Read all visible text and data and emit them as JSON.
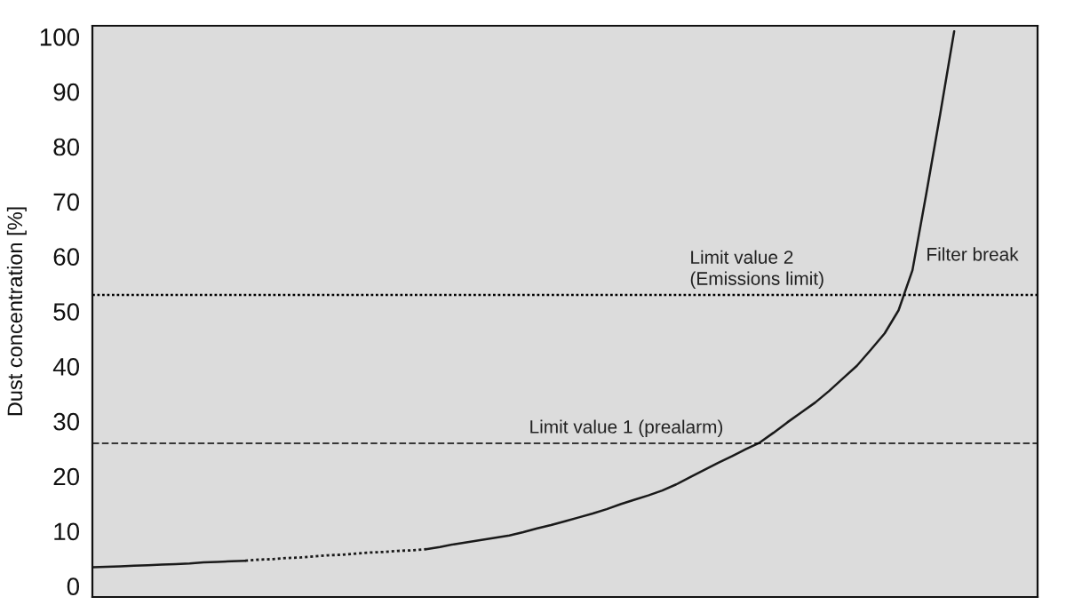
{
  "chart_data": {
    "type": "line",
    "ylabel": "Dust concentration [%]",
    "categories": [
      null,
      null,
      null,
      null,
      null,
      null,
      null,
      null,
      null,
      null,
      null,
      null,
      null,
      null,
      null,
      null,
      null,
      null,
      null,
      null,
      null,
      null,
      null,
      null,
      null,
      null,
      null,
      null,
      null,
      null,
      null,
      null,
      null,
      null,
      null,
      null,
      null,
      null,
      null,
      null,
      null,
      null,
      null,
      null,
      null,
      null,
      null,
      null,
      null,
      null,
      null,
      null,
      null,
      null,
      null,
      null,
      null,
      null,
      null,
      null,
      null,
      null,
      null,
      null,
      null,
      null,
      null,
      null,
      null
    ],
    "series": [
      {
        "color": "#1a1a1a",
        "line_style": "solid",
        "values": [
          3.4,
          3.5,
          3.6,
          3.7,
          3.8,
          3.9,
          4.0,
          4.1,
          4.3,
          4.4,
          4.5,
          4.6,
          null,
          null,
          null,
          null,
          null,
          null,
          null,
          null,
          null,
          null,
          null,
          null,
          null,
          null,
          null,
          null,
          null,
          null,
          null,
          null,
          null,
          null,
          null,
          null,
          null,
          null,
          null,
          null,
          null,
          null,
          null,
          null,
          null,
          null,
          null,
          null,
          null,
          null,
          null,
          null,
          null,
          null,
          null,
          null,
          null,
          null,
          null,
          null,
          null,
          null,
          null,
          null,
          null,
          null,
          null,
          null,
          null
        ]
      },
      {
        "color": "#1a1a1a",
        "line_style": "dotted",
        "values": [
          null,
          null,
          null,
          null,
          null,
          null,
          null,
          null,
          null,
          null,
          null,
          4.6,
          4.8,
          4.9,
          5.1,
          5.2,
          5.4,
          5.6,
          5.7,
          5.9,
          6.1,
          6.2,
          6.4,
          6.5,
          6.7,
          null,
          null,
          null,
          null,
          null,
          null,
          null,
          null,
          null,
          null,
          null,
          null,
          null,
          null,
          null,
          null,
          null,
          null,
          null,
          null,
          null,
          null,
          null,
          null,
          null,
          null,
          null,
          null,
          null,
          null,
          null,
          null,
          null,
          null,
          null,
          null,
          null,
          null,
          null,
          null,
          null,
          null,
          null,
          null
        ]
      },
      {
        "color": "#1a1a1a",
        "line_style": "solid",
        "values": [
          null,
          null,
          null,
          null,
          null,
          null,
          null,
          null,
          null,
          null,
          null,
          null,
          null,
          null,
          null,
          null,
          null,
          null,
          null,
          null,
          null,
          null,
          null,
          null,
          6.7,
          7.1,
          7.6,
          8.0,
          8.4,
          8.8,
          9.2,
          9.8,
          10.5,
          11.1,
          11.8,
          12.5,
          13.2,
          14.0,
          14.9,
          15.7,
          16.5,
          17.4,
          18.5,
          19.8,
          21.1,
          22.4,
          23.6,
          24.9,
          26.1,
          27.9,
          29.8,
          31.6,
          33.4,
          35.5,
          37.8,
          40.1,
          43.0,
          46.0,
          50.2,
          57.5,
          71.5,
          86.0,
          101.0,
          null,
          null,
          null,
          null,
          null,
          null
        ]
      }
    ],
    "ylim": [
      -2,
      102
    ],
    "yticks": [
      0,
      10,
      20,
      30,
      40,
      50,
      60,
      70,
      80,
      90,
      100
    ],
    "ref_lines": [
      {
        "axis": "y",
        "value": 53,
        "label": "Limit value 2\n(Emissions limit)",
        "line_style": "dotted",
        "color": "#000000"
      },
      {
        "axis": "y",
        "value": 26,
        "label": "Limit value 1 (prealarm)",
        "line_style": "dashed",
        "color": "#000000"
      }
    ],
    "annotations": [
      "Filter break"
    ],
    "tick_labels": "y"
  }
}
